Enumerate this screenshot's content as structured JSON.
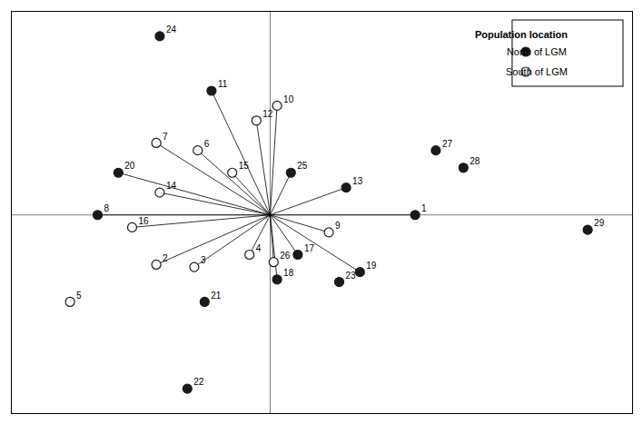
{
  "chart_data": {
    "type": "scatter",
    "xlim": [
      -0.75,
      1.05
    ],
    "ylim": [
      -0.8,
      0.82
    ],
    "xticks": [],
    "yticks": [],
    "tick_labels": false,
    "hlines": [
      0.0
    ],
    "vlines": [
      0.0
    ],
    "hub": {
      "x": 0.0,
      "y": 0.0
    },
    "legend": "upper right",
    "legend_title": "Population location",
    "series": [
      {
        "name": "North of LGM",
        "color": "#1a1a1a",
        "marker": "filled"
      },
      {
        "name": "South of LGM",
        "color": "#1a1a1a",
        "marker": "hollow"
      }
    ],
    "points": [
      {
        "label": "1",
        "x": 0.42,
        "y": 0.0,
        "series": "North of LGM",
        "line": true
      },
      {
        "label": "2",
        "x": -0.33,
        "y": -0.2,
        "series": "South of LGM",
        "line": true
      },
      {
        "label": "3",
        "x": -0.22,
        "y": -0.21,
        "series": "South of LGM",
        "line": true
      },
      {
        "label": "4",
        "x": -0.06,
        "y": -0.16,
        "series": "South of LGM",
        "line": true
      },
      {
        "label": "5",
        "x": -0.58,
        "y": -0.35,
        "series": "South of LGM",
        "line": false
      },
      {
        "label": "6",
        "x": -0.21,
        "y": 0.26,
        "series": "South of LGM",
        "line": true
      },
      {
        "label": "7",
        "x": -0.33,
        "y": 0.29,
        "series": "South of LGM",
        "line": true
      },
      {
        "label": "8",
        "x": -0.5,
        "y": 0.0,
        "series": "North of LGM",
        "line": true
      },
      {
        "label": "9",
        "x": 0.17,
        "y": -0.07,
        "series": "South of LGM",
        "line": true
      },
      {
        "label": "10",
        "x": 0.02,
        "y": 0.44,
        "series": "South of LGM",
        "line": true
      },
      {
        "label": "11",
        "x": -0.17,
        "y": 0.5,
        "series": "North of LGM",
        "line": true
      },
      {
        "label": "12",
        "x": -0.04,
        "y": 0.38,
        "series": "South of LGM",
        "line": true
      },
      {
        "label": "13",
        "x": 0.22,
        "y": 0.11,
        "series": "North of LGM",
        "line": true
      },
      {
        "label": "14",
        "x": -0.32,
        "y": 0.09,
        "series": "South of LGM",
        "line": true
      },
      {
        "label": "15",
        "x": -0.11,
        "y": 0.17,
        "series": "South of LGM",
        "line": true
      },
      {
        "label": "16",
        "x": -0.4,
        "y": -0.05,
        "series": "South of LGM",
        "line": true
      },
      {
        "label": "17",
        "x": 0.08,
        "y": -0.16,
        "series": "North of LGM",
        "line": true
      },
      {
        "label": "18",
        "x": 0.02,
        "y": -0.26,
        "series": "North of LGM",
        "line": true
      },
      {
        "label": "19",
        "x": 0.26,
        "y": -0.23,
        "series": "North of LGM",
        "line": true
      },
      {
        "label": "20",
        "x": -0.44,
        "y": 0.17,
        "series": "North of LGM",
        "line": true
      },
      {
        "label": "21",
        "x": -0.19,
        "y": -0.35,
        "series": "North of LGM",
        "line": false
      },
      {
        "label": "22",
        "x": -0.24,
        "y": -0.7,
        "series": "North of LGM",
        "line": false
      },
      {
        "label": "23",
        "x": 0.2,
        "y": -0.27,
        "series": "North of LGM",
        "line": false
      },
      {
        "label": "24",
        "x": -0.32,
        "y": 0.72,
        "series": "North of LGM",
        "line": false
      },
      {
        "label": "25",
        "x": 0.06,
        "y": 0.17,
        "series": "North of LGM",
        "line": true
      },
      {
        "label": "26",
        "x": 0.01,
        "y": -0.19,
        "series": "South of LGM",
        "line": true
      },
      {
        "label": "27",
        "x": 0.48,
        "y": 0.26,
        "series": "North of LGM",
        "line": false
      },
      {
        "label": "28",
        "x": 0.56,
        "y": 0.19,
        "series": "North of LGM",
        "line": false
      },
      {
        "label": "29",
        "x": 0.92,
        "y": -0.06,
        "series": "North of LGM",
        "line": false
      }
    ]
  }
}
